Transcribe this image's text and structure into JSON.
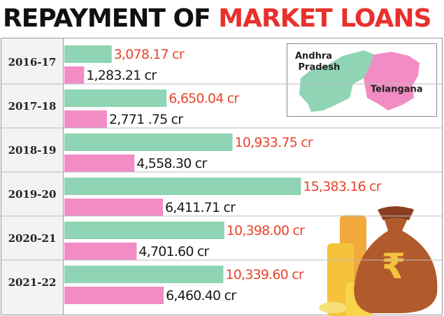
{
  "chart_data": {
    "type": "bar",
    "orientation": "horizontal",
    "title": [
      "REPAYMENT OF",
      "MARKET LOANS"
    ],
    "categories": [
      "2016-17",
      "2017-18",
      "2018-19",
      "2019-20",
      "2020-21",
      "2021-22"
    ],
    "series": [
      {
        "name": "Andhra Pradesh",
        "color": "#8fd4b4",
        "label_color": "#e8452c",
        "values": [
          3078.17,
          6650.04,
          10933.75,
          15383.16,
          10398.0,
          10339.6
        ],
        "value_labels": [
          "3,078.17 cr",
          "6,650.04 cr",
          "10,933.75 cr",
          "15,383.16 cr",
          "10,398.00 cr",
          "10,339.60 cr"
        ]
      },
      {
        "name": "Telangana",
        "color": "#f28cc4",
        "label_color": "#1a1a1a",
        "values": [
          1283.21,
          2771.75,
          4558.3,
          6411.71,
          4701.6,
          6460.4
        ],
        "value_labels": [
          "1,283.21 cr",
          "2,771 .75 cr",
          "4,558.30 cr",
          "6,411.71 cr",
          "4,701.60 cr",
          "6,460.40 cr"
        ]
      }
    ]
  }
}
